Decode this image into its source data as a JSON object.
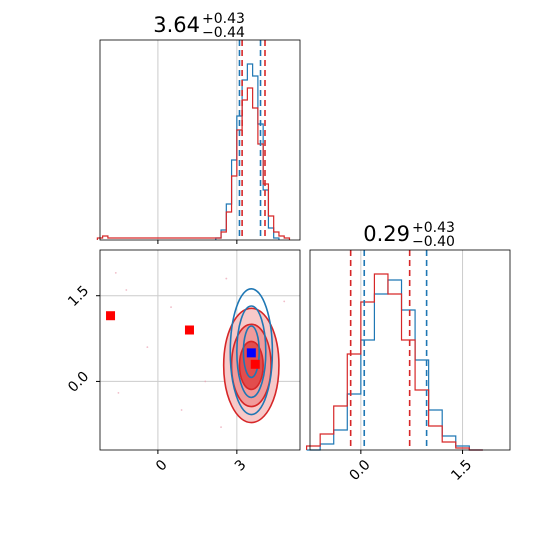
{
  "colors": {
    "red": "#d62728",
    "blue": "#1f77b4",
    "red_fill": "#f4a3a3",
    "grid": "#cccccc",
    "marker_red": "#ff0000",
    "marker_blue": "#0000ff"
  },
  "chart_data": [
    {
      "type": "line",
      "panel": "top-left marginal histogram (parameter 1)",
      "title": {
        "median": "3.64",
        "upper": "+0.43",
        "lower": "−0.44"
      },
      "xlim": [
        -2.2,
        5.4
      ],
      "grid": true,
      "series": [
        {
          "color": "#1f77b4",
          "x": [
            2.3,
            2.5,
            2.7,
            2.9,
            3.1,
            3.3,
            3.5,
            3.7,
            3.9,
            4.1,
            4.3,
            4.5
          ],
          "y": [
            0.01,
            0.05,
            0.18,
            0.4,
            0.62,
            0.8,
            0.88,
            0.82,
            0.58,
            0.25,
            0.06,
            0.01
          ]
        },
        {
          "color": "#d62728",
          "x": [
            -2.2,
            -2.0,
            -1.8,
            2.3,
            2.5,
            2.7,
            2.9,
            3.1,
            3.3,
            3.5,
            3.7,
            3.9,
            4.1,
            4.3,
            4.5,
            4.7,
            4.9
          ],
          "y": [
            0.01,
            0.02,
            0.01,
            0.01,
            0.04,
            0.14,
            0.32,
            0.55,
            0.7,
            0.76,
            0.66,
            0.48,
            0.28,
            0.12,
            0.04,
            0.02,
            0.01
          ]
        }
      ],
      "vlines": [
        {
          "x": 3.2,
          "color": "#d62728"
        },
        {
          "x": 4.07,
          "color": "#d62728"
        },
        {
          "x": 3.1,
          "color": "#1f77b4"
        },
        {
          "x": 3.9,
          "color": "#1f77b4"
        }
      ]
    },
    {
      "type": "line",
      "panel": "right marginal histogram (parameter 2)",
      "title": {
        "median": "0.29",
        "upper": "+0.43",
        "lower": "−0.40"
      },
      "xlim": [
        -0.75,
        2.2
      ],
      "x_ticks": [
        "0.0",
        "1.5"
      ],
      "x_tick_values": [
        0.0,
        1.5
      ],
      "grid": true,
      "series": [
        {
          "color": "#1f77b4",
          "x": [
            -0.7,
            -0.5,
            -0.3,
            -0.1,
            0.1,
            0.3,
            0.5,
            0.7,
            0.9,
            1.1,
            1.3,
            1.5,
            1.7
          ],
          "y": [
            0.0,
            0.03,
            0.1,
            0.28,
            0.55,
            0.78,
            0.85,
            0.7,
            0.45,
            0.2,
            0.07,
            0.02,
            0.0
          ]
        },
        {
          "color": "#d62728",
          "x": [
            -0.7,
            -0.5,
            -0.3,
            -0.1,
            0.1,
            0.3,
            0.5,
            0.7,
            0.9,
            1.1,
            1.3,
            1.5,
            1.7
          ],
          "y": [
            0.02,
            0.08,
            0.22,
            0.48,
            0.74,
            0.88,
            0.78,
            0.55,
            0.3,
            0.12,
            0.04,
            0.01,
            0.0
          ]
        }
      ],
      "vlines": [
        {
          "x": -0.15,
          "color": "#d62728"
        },
        {
          "x": 0.72,
          "color": "#d62728"
        },
        {
          "x": 0.05,
          "color": "#1f77b4"
        },
        {
          "x": 0.97,
          "color": "#1f77b4"
        }
      ]
    },
    {
      "type": "scatter",
      "panel": "bottom-left 2D posterior (parameter 1 vs parameter 2)",
      "xlim": [
        -2.2,
        5.4
      ],
      "ylim": [
        -1.2,
        2.3
      ],
      "x_ticks": [
        "0",
        "3"
      ],
      "x_tick_values": [
        0,
        3
      ],
      "y_ticks": [
        "0.0",
        "1.5"
      ],
      "y_tick_values": [
        0.0,
        1.5
      ],
      "grid": true,
      "contours": [
        {
          "color": "#d62728",
          "filled": true,
          "center": [
            3.55,
            0.28
          ],
          "rx": [
            1.05,
            0.75,
            0.45
          ],
          "ry": [
            1.0,
            0.72,
            0.42
          ]
        },
        {
          "color": "#1f77b4",
          "filled": false,
          "center": [
            3.55,
            0.52
          ],
          "rx": [
            0.8,
            0.55,
            0.3
          ],
          "ry": [
            1.1,
            0.8,
            0.45
          ]
        }
      ],
      "markers": [
        {
          "x": -1.8,
          "y": 1.15,
          "color": "#ff0000"
        },
        {
          "x": 1.2,
          "y": 0.9,
          "color": "#ff0000"
        },
        {
          "x": 3.7,
          "y": 0.3,
          "color": "#ff0000"
        },
        {
          "x": 3.55,
          "y": 0.5,
          "color": "#0000ff"
        }
      ]
    }
  ]
}
